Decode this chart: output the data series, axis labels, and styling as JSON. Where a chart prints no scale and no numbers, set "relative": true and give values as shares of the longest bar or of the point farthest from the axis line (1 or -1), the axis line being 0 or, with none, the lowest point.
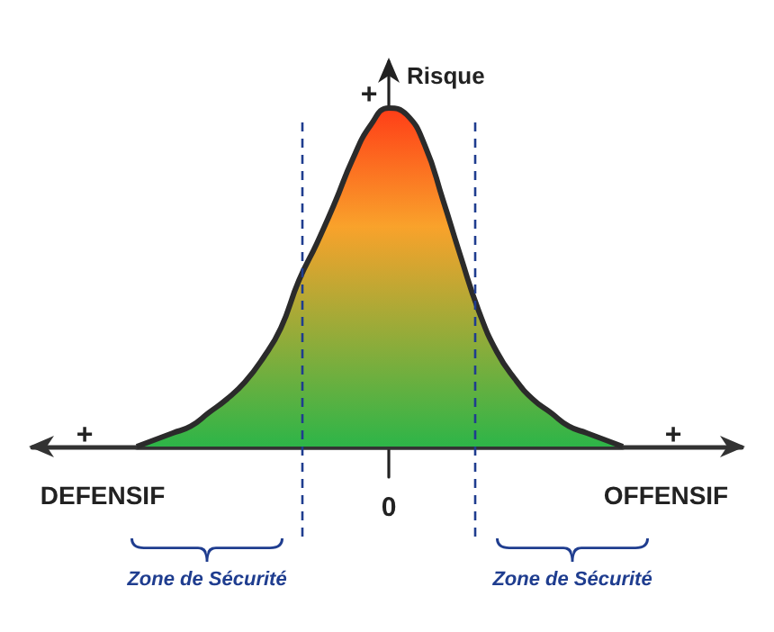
{
  "chart_data": {
    "type": "area",
    "relative": true,
    "ylabel": "Risque",
    "categories": [
      null,
      null,
      null,
      null,
      null,
      null,
      null,
      null,
      null,
      null,
      null,
      null,
      null,
      null,
      null,
      null,
      null,
      null,
      null,
      null,
      null,
      null,
      null,
      null,
      null,
      null,
      null,
      null
    ],
    "series": [
      {
        "color": "#2b2b2b",
        "values": [
          0,
          0.02,
          0.04,
          0.06,
          0.1,
          0.14,
          0.19,
          0.26,
          0.35,
          0.49,
          0.6,
          0.72,
          0.85,
          0.95,
          1,
          0.98,
          0.89,
          0.73,
          0.56,
          0.4,
          0.28,
          0.2,
          0.14,
          0.1,
          0.06,
          0.04,
          0.02,
          0
        ]
      }
    ],
    "annotations": [
      "+",
      "+",
      "+",
      "DEFENSIF",
      "OFFENSIF",
      "0",
      "Zone de Sécurité",
      "Zone de Sécurité"
    ],
    "grid": false,
    "marker": "none",
    "line_style": "solid"
  }
}
